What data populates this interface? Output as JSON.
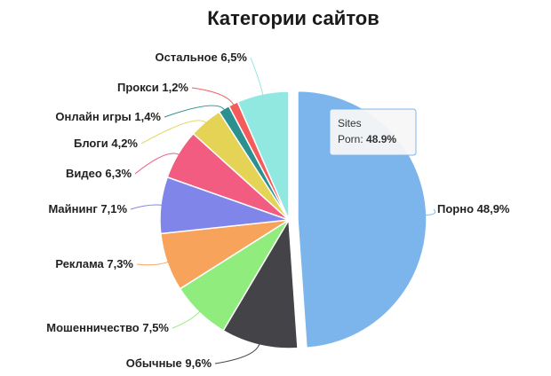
{
  "chart_data": {
    "type": "pie",
    "title": "Категории сайтов",
    "slices": [
      {
        "label": "Порно",
        "value": 48.9,
        "text": "Порно 48,9%",
        "color": "#7cb5ec"
      },
      {
        "label": "Обычные",
        "value": 9.6,
        "text": "Обычные 9,6%",
        "color": "#434348"
      },
      {
        "label": "Мошенничество",
        "value": 7.5,
        "text": "Мошенничество 7,5%",
        "color": "#90ed7d"
      },
      {
        "label": "Реклама",
        "value": 7.3,
        "text": "Реклама 7,3%",
        "color": "#f7a35c"
      },
      {
        "label": "Майнинг",
        "value": 7.1,
        "text": "Майнинг 7,1%",
        "color": "#8085e9"
      },
      {
        "label": "Видео",
        "value": 6.3,
        "text": "Видео 6,3%",
        "color": "#f15c80"
      },
      {
        "label": "Блоги",
        "value": 4.2,
        "text": "Блоги 4,2%",
        "color": "#e4d354"
      },
      {
        "label": "Онлайн игры",
        "value": 1.4,
        "text": "Онлайн игры 1,4%",
        "color": "#2b908f"
      },
      {
        "label": "Прокси",
        "value": 1.2,
        "text": "Прокси 1,2%",
        "color": "#f45b5b"
      },
      {
        "label": "Остальное",
        "value": 6.5,
        "text": "Остальное 6,5%",
        "color": "#91e8e1"
      }
    ],
    "selected_slice": "Порно",
    "tooltip": {
      "series": "Sites",
      "label": "Porn",
      "value": "48.9%"
    }
  }
}
